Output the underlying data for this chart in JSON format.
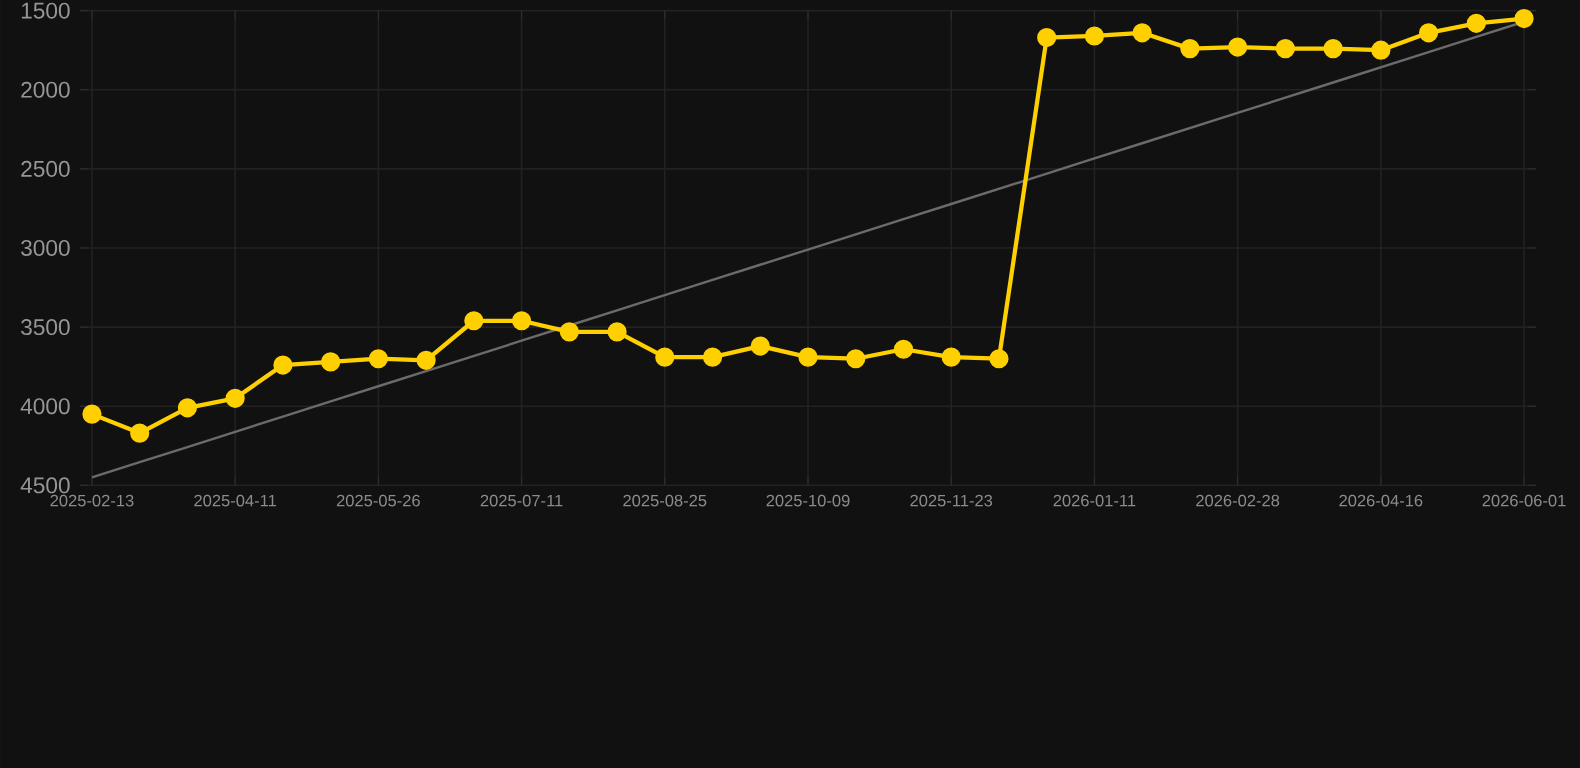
{
  "chart_data": {
    "type": "line",
    "categories": [
      "2025-02-13",
      null,
      null,
      "2025-04-11",
      null,
      null,
      "2025-05-26",
      null,
      null,
      "2025-07-11",
      null,
      null,
      "2025-08-25",
      null,
      null,
      "2025-10-09",
      null,
      null,
      "2025-11-23",
      null,
      null,
      "2026-01-11",
      null,
      null,
      "2026-02-28",
      null,
      null,
      "2026-04-16",
      null,
      null,
      "2026-06-01"
    ],
    "series": [
      {
        "color": "#ffd000",
        "marker": "circle",
        "values": [
          4050,
          4170,
          4010,
          3950,
          3740,
          3720,
          3700,
          3710,
          3460,
          3460,
          3530,
          3530,
          3690,
          3690,
          3620,
          3690,
          3700,
          3640,
          3690,
          3700,
          1670,
          1660,
          1640,
          1740,
          1730,
          1740,
          1740,
          1750,
          1640,
          1580,
          1550
        ]
      },
      {
        "color": "#6b6b6b",
        "marker": "none",
        "values": [
          4450,
          4354,
          4258,
          4162,
          4066,
          3970,
          3874,
          3778,
          3682,
          3586,
          3490,
          3394,
          3298,
          3202,
          3106,
          3010,
          2914,
          2818,
          2722,
          2626,
          2530,
          2434,
          2338,
          2242,
          2146,
          2050,
          1954,
          1858,
          1762,
          1666,
          1570
        ]
      }
    ],
    "ylim": [
      4500,
      1500
    ],
    "yticks": [
      1500,
      2000,
      2500,
      3000,
      3500,
      4000,
      4500
    ],
    "grid": true
  }
}
